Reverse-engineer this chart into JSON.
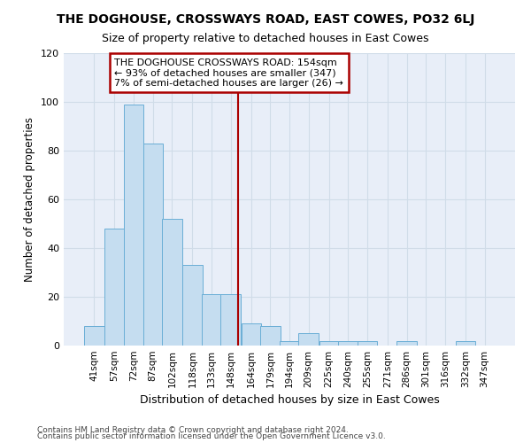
{
  "title": "THE DOGHOUSE, CROSSWAYS ROAD, EAST COWES, PO32 6LJ",
  "subtitle": "Size of property relative to detached houses in East Cowes",
  "xlabel": "Distribution of detached houses by size in East Cowes",
  "ylabel": "Number of detached properties",
  "categories": [
    "41sqm",
    "57sqm",
    "72sqm",
    "87sqm",
    "102sqm",
    "118sqm",
    "133sqm",
    "148sqm",
    "164sqm",
    "179sqm",
    "194sqm",
    "209sqm",
    "225sqm",
    "240sqm",
    "255sqm",
    "271sqm",
    "286sqm",
    "301sqm",
    "316sqm",
    "332sqm",
    "347sqm"
  ],
  "bar_centers": [
    41,
    57,
    72,
    87,
    102,
    118,
    133,
    148,
    164,
    179,
    194,
    209,
    225,
    240,
    255,
    271,
    286,
    301,
    316,
    332,
    347
  ],
  "bar_values": [
    8,
    48,
    99,
    83,
    52,
    33,
    21,
    21,
    9,
    8,
    2,
    5,
    2,
    2,
    2,
    0,
    2,
    0,
    0,
    2,
    0
  ],
  "bar_color": "#c5ddf0",
  "bar_edge_color": "#6aaed6",
  "grid_color": "#d0dce8",
  "background_color": "#e8eef8",
  "vline_x": 154,
  "vline_color": "#aa0000",
  "annotation_text": "THE DOGHOUSE CROSSWAYS ROAD: 154sqm\n← 93% of detached houses are smaller (347)\n7% of semi-detached houses are larger (26) →",
  "annotation_box_color": "#aa0000",
  "ylim": [
    0,
    120
  ],
  "yticks": [
    0,
    20,
    40,
    60,
    80,
    100,
    120
  ],
  "footer1": "Contains HM Land Registry data © Crown copyright and database right 2024.",
  "footer2": "Contains public sector information licensed under the Open Government Licence v3.0."
}
